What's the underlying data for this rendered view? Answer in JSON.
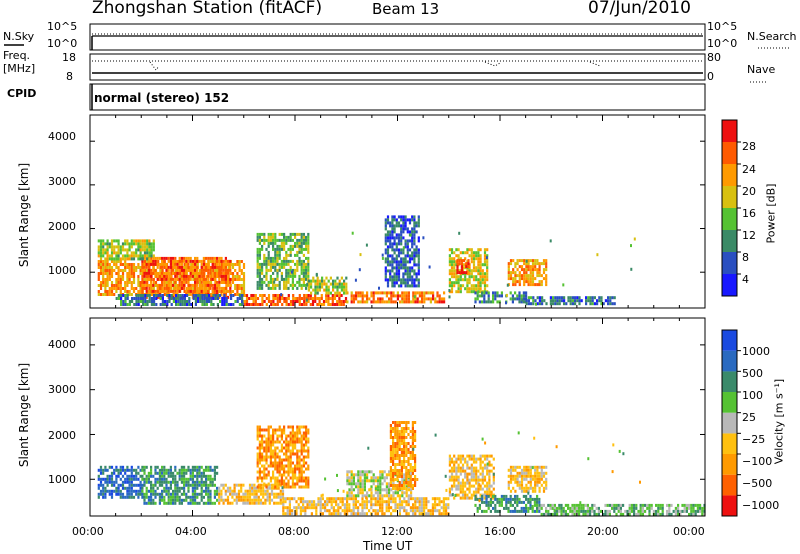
{
  "header": {
    "station": "Zhongshan Station (fitACF)",
    "beam": "Beam 13",
    "date": "07/Jun/2010"
  },
  "strip1": {
    "left_label": "N.Sky",
    "left_ticks": [
      "10^5",
      "10^0"
    ],
    "right_ticks": [
      "10^5",
      "10^0"
    ],
    "right_label": "N.Search"
  },
  "strip2": {
    "left_label_1": "Freq.",
    "left_label_2": "[MHz]",
    "left_ticks": [
      "18",
      "8"
    ],
    "right_ticks": [
      "80",
      "0"
    ],
    "right_label": "Nave"
  },
  "cpid": {
    "label": "CPID",
    "value": "normal (stereo) 152"
  },
  "axes": {
    "ylabel": "Slant Range [km]",
    "yticks": [
      "1000",
      "2000",
      "3000",
      "4000"
    ],
    "xticks": [
      "00:00",
      "04:00",
      "08:00",
      "12:00",
      "16:00",
      "20:00",
      "00:00"
    ],
    "xlabel": "Time UT"
  },
  "colorbars": {
    "power": {
      "label": "Power [dB]",
      "ticks": [
        "4",
        "8",
        "12",
        "16",
        "20",
        "24",
        "28"
      ],
      "colors": [
        "#1818ff",
        "#2a4fc0",
        "#3a8a66",
        "#55c233",
        "#d8c010",
        "#ff9a00",
        "#ff5a00",
        "#ee1010"
      ]
    },
    "velocity": {
      "label": "Velocity [m s⁻¹]",
      "ticks": [
        "1000",
        "500",
        "100",
        "25",
        "−25",
        "−100",
        "−500",
        "−1000"
      ],
      "colors": [
        "#1a4ae0",
        "#2a6ac0",
        "#3a8a6a",
        "#55c233",
        "#b8b8b8",
        "#ffc010",
        "#ff9a00",
        "#ff6000",
        "#ee1010"
      ]
    }
  },
  "chart_data": [
    {
      "type": "heatmap",
      "name": "Power",
      "x_range_hours": [
        0,
        24
      ],
      "y_range_km": [
        180,
        4600
      ],
      "regions": [
        {
          "x": [
            0.3,
            6.0
          ],
          "y": [
            480,
            1280
          ],
          "value": 22
        },
        {
          "x": [
            2.0,
            5.5
          ],
          "y": [
            450,
            1350
          ],
          "value": 25
        },
        {
          "x": [
            0.3,
            2.5
          ],
          "y": [
            1280,
            1750
          ],
          "value": 16
        },
        {
          "x": [
            1.0,
            6.0
          ],
          "y": [
            250,
            500
          ],
          "value": 8
        },
        {
          "x": [
            6.0,
            10.0
          ],
          "y": [
            250,
            500
          ],
          "value": 26
        },
        {
          "x": [
            10.0,
            13.8
          ],
          "y": [
            300,
            560
          ],
          "value": 24
        },
        {
          "x": [
            6.5,
            8.5
          ],
          "y": [
            650,
            1900
          ],
          "value": 14
        },
        {
          "x": [
            8.5,
            10.0
          ],
          "y": [
            550,
            900
          ],
          "value": 16
        },
        {
          "x": [
            11.5,
            12.8
          ],
          "y": [
            700,
            2300
          ],
          "value": 7
        },
        {
          "x": [
            14.0,
            15.5
          ],
          "y": [
            550,
            1550
          ],
          "value": 18
        },
        {
          "x": [
            14.3,
            14.8
          ],
          "y": [
            1000,
            1300
          ],
          "value": 28
        },
        {
          "x": [
            15.0,
            17.0
          ],
          "y": [
            320,
            560
          ],
          "value": 10
        },
        {
          "x": [
            16.3,
            17.8
          ],
          "y": [
            700,
            1300
          ],
          "value": 22
        },
        {
          "x": [
            17.0,
            20.5
          ],
          "y": [
            250,
            450
          ],
          "value": 8
        }
      ]
    },
    {
      "type": "heatmap",
      "name": "Velocity",
      "x_range_hours": [
        0,
        24
      ],
      "y_range_km": [
        180,
        4600
      ],
      "regions": [
        {
          "x": [
            0.3,
            2.0
          ],
          "y": [
            600,
            1300
          ],
          "value": 500
        },
        {
          "x": [
            2.0,
            5.0
          ],
          "y": [
            450,
            1300
          ],
          "value": 100
        },
        {
          "x": [
            5.0,
            7.5
          ],
          "y": [
            450,
            900
          ],
          "value": -100
        },
        {
          "x": [
            6.5,
            8.5
          ],
          "y": [
            800,
            2200
          ],
          "value": -500
        },
        {
          "x": [
            7.5,
            14.0
          ],
          "y": [
            250,
            600
          ],
          "value": -100
        },
        {
          "x": [
            10.0,
            12.5
          ],
          "y": [
            650,
            1200
          ],
          "value": -25
        },
        {
          "x": [
            11.7,
            12.7
          ],
          "y": [
            800,
            2300
          ],
          "value": -500
        },
        {
          "x": [
            14.0,
            15.8
          ],
          "y": [
            550,
            1550
          ],
          "value": -100
        },
        {
          "x": [
            15.0,
            17.5
          ],
          "y": [
            300,
            650
          ],
          "value": 100
        },
        {
          "x": [
            16.3,
            17.8
          ],
          "y": [
            700,
            1300
          ],
          "value": -100
        },
        {
          "x": [
            17.5,
            24.0
          ],
          "y": [
            220,
            450
          ],
          "value": 25
        }
      ]
    }
  ]
}
